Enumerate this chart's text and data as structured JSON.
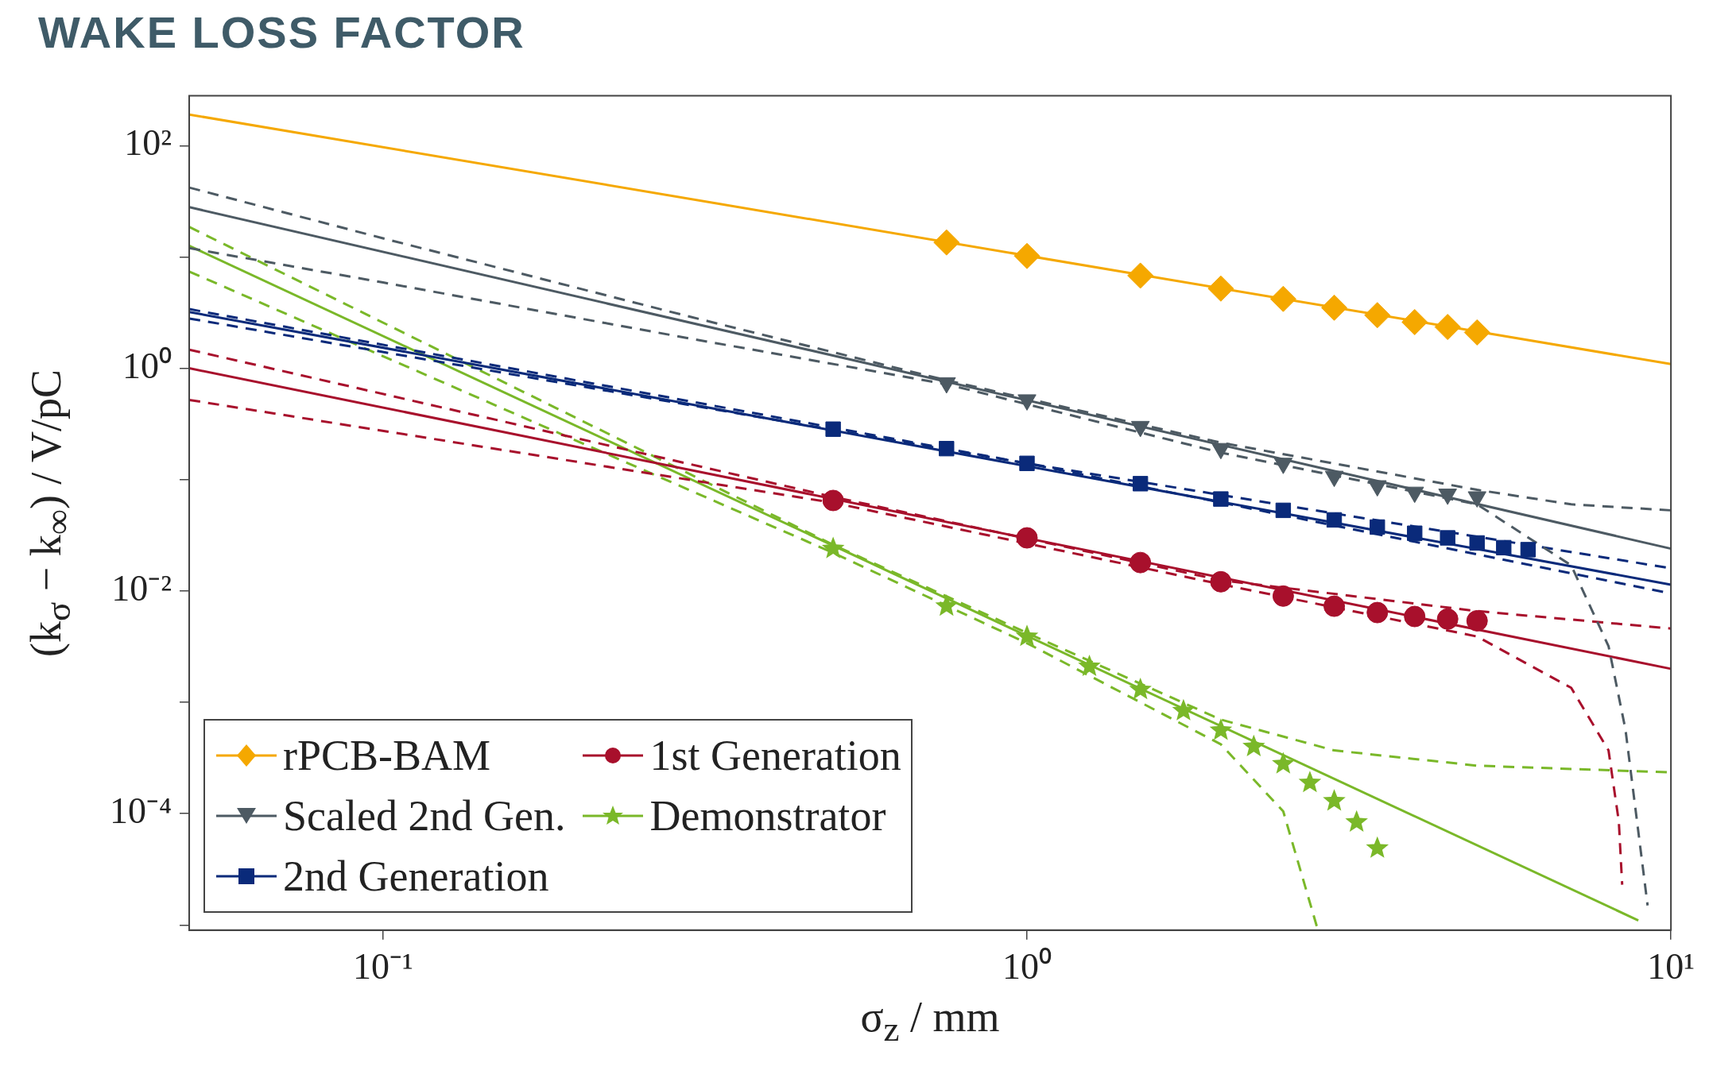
{
  "chart_data": {
    "type": "scatter",
    "title": "WAKE LOSS FACTOR",
    "xlabel": "σ$_{z}$ / mm",
    "ylabel": "(k$_{σ}$ − k$_{∞}$) / V/pC",
    "log": "xy",
    "grid": false,
    "legend": "bottom left",
    "xlim": [
      0.05,
      10
    ],
    "ylim": [
      9e-06,
      280
    ],
    "xticks": [
      {
        "value": 0.1,
        "label": "10⁻¹"
      },
      {
        "value": 1,
        "label": "10⁰"
      },
      {
        "value": 10,
        "label": "10¹"
      }
    ],
    "yticks": [
      {
        "value": 1e-05,
        "label": null
      },
      {
        "value": 0.0001,
        "label": "10⁻⁴"
      },
      {
        "value": 0.001,
        "label": null
      },
      {
        "value": 0.01,
        "label": "10⁻²"
      },
      {
        "value": 0.1,
        "label": null
      },
      {
        "value": 1,
        "label": "10⁰"
      },
      {
        "value": 10,
        "label": null
      },
      {
        "value": 100,
        "label": "10²"
      }
    ],
    "series": [
      {
        "name": "rPCB-BAM",
        "marker": "diamond",
        "color": "#f5a800",
        "x": [
          0.75,
          1,
          1.5,
          2,
          2.5,
          3,
          3.5,
          4,
          4.5,
          5
        ],
        "values": [
          13.5,
          10.2,
          6.8,
          5.2,
          4.2,
          3.5,
          3.0,
          2.6,
          2.35,
          2.1
        ]
      },
      {
        "name": "Scaled 2nd Gen.",
        "marker": "triangle",
        "color": "#4d5a63",
        "x": [
          0.75,
          1,
          1.5,
          2,
          2.5,
          3,
          3.5,
          4,
          4.5,
          5
        ],
        "values": [
          0.74,
          0.52,
          0.3,
          0.19,
          0.14,
          0.107,
          0.088,
          0.077,
          0.074,
          0.07
        ]
      },
      {
        "name": "2nd Generation",
        "marker": "square",
        "color": "#0a2a7a",
        "x": [
          0.5,
          0.75,
          1,
          1.5,
          2,
          2.5,
          3,
          3.5,
          4,
          4.5,
          5,
          5.5,
          6
        ],
        "values": [
          0.284,
          0.19,
          0.14,
          0.092,
          0.067,
          0.053,
          0.0435,
          0.0375,
          0.033,
          0.03,
          0.027,
          0.0245,
          0.0235
        ]
      },
      {
        "name": "1st Generation",
        "marker": "circle",
        "color": "#a8102c",
        "x": [
          0.5,
          1,
          1.5,
          2,
          2.5,
          3,
          3.5,
          4,
          4.5,
          5
        ],
        "values": [
          0.065,
          0.03,
          0.018,
          0.0121,
          0.009,
          0.0073,
          0.0064,
          0.0059,
          0.0056,
          0.0054
        ]
      },
      {
        "name": "Demonstrator",
        "marker": "star",
        "color": "#7ab829",
        "x": [
          0.5,
          0.75,
          1,
          1.25,
          1.5,
          1.75,
          2,
          2.25,
          2.5,
          2.75,
          3,
          3.25,
          3.5
        ],
        "values": [
          0.024,
          0.0073,
          0.0039,
          0.0021,
          0.0013,
          0.00084,
          0.00056,
          0.0004,
          0.00028,
          0.00019,
          0.00013,
          8.4e-05,
          4.9e-05
        ]
      },
      {
        "type": "line",
        "line_style": "solid",
        "color": "#f5a800",
        "x": [
          0.05,
          10
        ],
        "values": [
          190,
          1.09
        ]
      },
      {
        "type": "line",
        "line_style": "solid",
        "color": "#4d5a63",
        "x": [
          0.05,
          10
        ],
        "values": [
          28,
          0.024
        ]
      },
      {
        "type": "line",
        "line_style": "dashed",
        "color": "#4d5a63",
        "x": [
          0.05,
          0.1,
          0.3,
          0.75,
          2,
          5,
          7,
          10
        ],
        "values": [
          42,
          14.7,
          2.9,
          0.78,
          0.215,
          0.081,
          0.06,
          0.053
        ]
      },
      {
        "type": "line",
        "line_style": "dashed",
        "color": "#4d5a63",
        "x": [
          0.05,
          0.1,
          0.3,
          0.75,
          2,
          5,
          7,
          8,
          8.5,
          9.2
        ],
        "values": [
          12,
          5.9,
          1.85,
          0.72,
          0.175,
          0.06,
          0.017,
          0.0032,
          0.00057,
          1.5e-05
        ]
      },
      {
        "type": "line",
        "line_style": "solid",
        "color": "#0a2a7a",
        "x": [
          0.05,
          10
        ],
        "values": [
          3.2,
          0.0114
        ]
      },
      {
        "type": "line",
        "line_style": "dashed",
        "color": "#0a2a7a",
        "x": [
          0.05,
          1,
          10
        ],
        "values": [
          3.4,
          0.14,
          0.016
        ]
      },
      {
        "type": "line",
        "line_style": "dashed",
        "color": "#0a2a7a",
        "x": [
          0.05,
          1,
          10
        ],
        "values": [
          2.8,
          0.14,
          0.0095
        ]
      },
      {
        "type": "line",
        "line_style": "solid",
        "color": "#a8102c",
        "x": [
          0.05,
          10
        ],
        "values": [
          1.0,
          0.002
        ]
      },
      {
        "type": "line",
        "line_style": "dashed",
        "color": "#a8102c",
        "x": [
          0.05,
          0.5,
          2,
          5,
          10
        ],
        "values": [
          1.47,
          0.07,
          0.0125,
          0.0066,
          0.0046
        ]
      },
      {
        "type": "line",
        "line_style": "dashed",
        "color": "#a8102c",
        "x": [
          0.05,
          0.5,
          2,
          5,
          7,
          8,
          8.3,
          8.4
        ],
        "values": [
          0.52,
          0.062,
          0.0115,
          0.0039,
          0.00135,
          0.00037,
          8.5e-05,
          2.3e-05
        ]
      },
      {
        "type": "line",
        "line_style": "solid",
        "color": "#7ab829",
        "x": [
          0.05,
          8.9
        ],
        "values": [
          12.6,
          1.1e-05
        ]
      },
      {
        "type": "line",
        "line_style": "dashed",
        "color": "#7ab829",
        "x": [
          0.05,
          0.5,
          1,
          2,
          3,
          5,
          10
        ],
        "values": [
          18.6,
          0.026,
          0.0042,
          0.0007,
          0.00037,
          0.00027,
          0.000235
        ]
      },
      {
        "type": "line",
        "line_style": "dashed",
        "color": "#7ab829",
        "x": [
          0.05,
          0.5,
          1,
          2,
          2.5,
          2.83
        ],
        "values": [
          7.4,
          0.022,
          0.0034,
          0.00042,
          0.000105,
          9e-06
        ]
      }
    ]
  }
}
